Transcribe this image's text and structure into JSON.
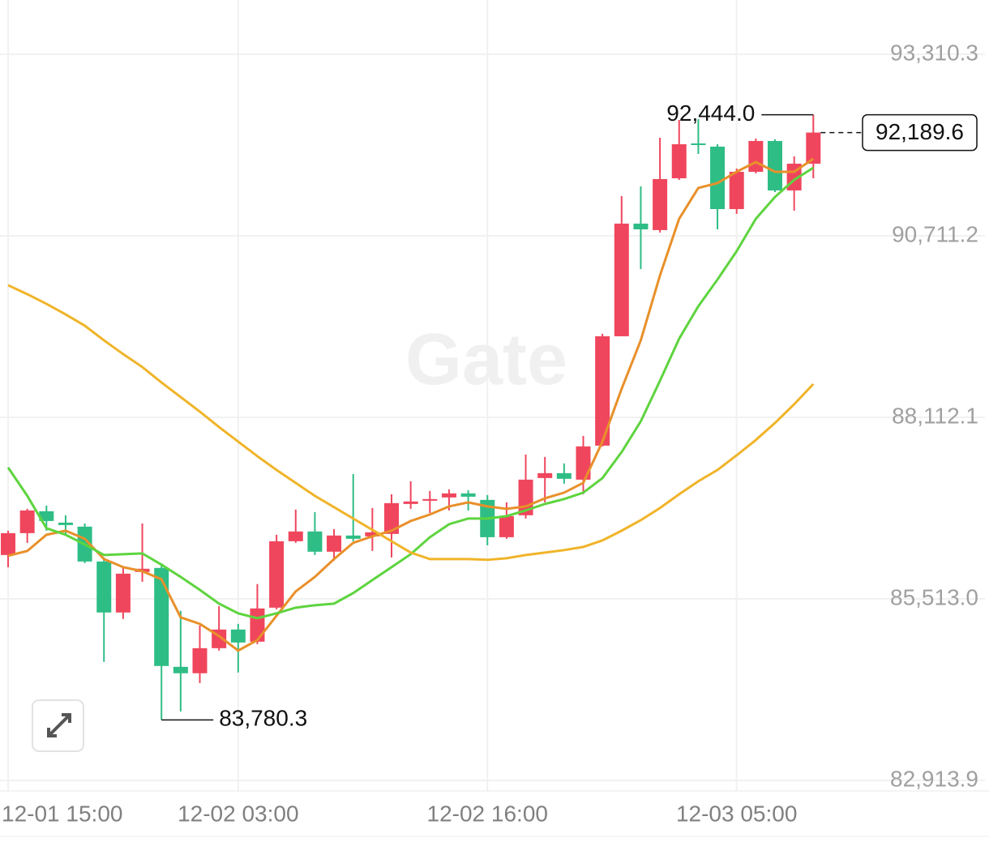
{
  "chart_data": {
    "type": "candlestick",
    "watermark": "Gate",
    "categories": [
      "12-01 15:00",
      null,
      null,
      null,
      null,
      null,
      null,
      null,
      null,
      null,
      null,
      null,
      "12-02 03:00",
      null,
      null,
      null,
      null,
      null,
      null,
      null,
      null,
      null,
      null,
      null,
      null,
      "12-02 16:00",
      null,
      null,
      null,
      null,
      null,
      null,
      null,
      null,
      null,
      null,
      null,
      null,
      "12-03 05:00",
      null,
      null,
      null,
      null
    ],
    "open": [
      86141,
      86454,
      86768,
      86605,
      86547,
      86048,
      85318,
      85898,
      85956,
      84540,
      84448,
      84807,
      85074,
      84900,
      85387,
      86338,
      86478,
      86188,
      86420,
      86408,
      86443,
      86872,
      86918,
      86965,
      87023,
      86930,
      86396,
      86710,
      87243,
      87313,
      87220,
      87707,
      89273,
      90886,
      90793,
      91535,
      92034,
      91988,
      91094,
      91628,
      92069,
      91361,
      91744
    ],
    "high": [
      86489,
      86802,
      86849,
      86710,
      86594,
      86106,
      85967,
      86594,
      86025,
      85341,
      85132,
      85410,
      85155,
      85724,
      86431,
      86791,
      86756,
      86512,
      87301,
      86814,
      87011,
      87197,
      87058,
      87081,
      87069,
      87000,
      86895,
      87580,
      87545,
      87452,
      87846,
      89308,
      91280,
      91419,
      92115,
      92370,
      92382,
      92022,
      91674,
      92104,
      92092,
      91848,
      92444.0
    ],
    "low": [
      85967,
      86315,
      86489,
      86431,
      86025,
      84610,
      85225,
      85758,
      83780.3,
      83902,
      84308,
      84772,
      84459,
      84865,
      85364,
      86315,
      86141,
      86060,
      86338,
      86199,
      86106,
      86802,
      86744,
      86779,
      86779,
      86280,
      86373,
      86663,
      86895,
      87162,
      87011,
      87696,
      89273,
      90236,
      90758,
      91512,
      91883,
      90804,
      91025,
      91605,
      91338,
      91071,
      91535
    ],
    "close": [
      86454,
      86779,
      86628,
      86570,
      86048,
      85318,
      85874,
      85944,
      84552,
      84448,
      84807,
      85074,
      84888,
      85376,
      86338,
      86478,
      86188,
      86420,
      86373,
      86466,
      86884,
      86907,
      86942,
      87023,
      86976,
      86396,
      86698,
      87220,
      87313,
      87232,
      87696,
      89273,
      90886,
      90804,
      91524,
      92022,
      92011,
      91094,
      91628,
      92069,
      91361,
      91744,
      92189.6
    ],
    "up_color": "#f0465d",
    "down_color": "#2ebd85",
    "series": [
      {
        "color": "#e8902a",
        "values": [
          86130,
          86199,
          86431,
          86489,
          86373,
          86083,
          85967,
          85909,
          85793,
          85248,
          85155,
          84981,
          84772,
          84923,
          85271,
          85619,
          85828,
          86083,
          86315,
          86408,
          86489,
          86628,
          86721,
          86837,
          86895,
          86837,
          86802,
          86837,
          86953,
          87034,
          87174,
          87765,
          88519,
          89215,
          90143,
          90955,
          91396,
          91466,
          91628,
          91767,
          91628,
          91628,
          91814
        ]
      },
      {
        "color": "#5ed43f",
        "values": [
          87394,
          86988,
          86524,
          86431,
          86292,
          86141,
          86153,
          86164,
          86002,
          85828,
          85642,
          85445,
          85306,
          85236,
          85306,
          85387,
          85422,
          85445,
          85596,
          85782,
          85967,
          86153,
          86396,
          86582,
          86663,
          86663,
          86698,
          86779,
          86872,
          86942,
          87034,
          87243,
          87614,
          88055,
          88635,
          89238,
          89702,
          90085,
          90491,
          90955,
          91268,
          91512,
          91686
        ]
      },
      {
        "color": "#f0b429",
        "values": [
          90004,
          89876,
          89737,
          89586,
          89424,
          89215,
          89018,
          88832,
          88612,
          88403,
          88194,
          87974,
          87765,
          87556,
          87359,
          87174,
          86988,
          86826,
          86663,
          86501,
          86338,
          86176,
          86083,
          86083,
          86083,
          86072,
          86095,
          86141,
          86176,
          86211,
          86257,
          86350,
          86489,
          86640,
          86814,
          87011,
          87197,
          87359,
          87568,
          87788,
          88032,
          88299,
          88589
        ]
      }
    ],
    "annotations": {
      "high": "92,444.0",
      "low": "83,780.3",
      "last": "92,189.6"
    },
    "ylim": [
      82800,
      93700
    ],
    "yticks": [
      {
        "value": 93310.3,
        "label": "93,310.3"
      },
      {
        "value": 90711.2,
        "label": "90,711.2"
      },
      {
        "value": 88112.1,
        "label": "88,112.1"
      },
      {
        "value": 85513.0,
        "label": "85,513.0"
      },
      {
        "value": 82913.9,
        "label": "82,913.9"
      }
    ],
    "grid": true
  }
}
